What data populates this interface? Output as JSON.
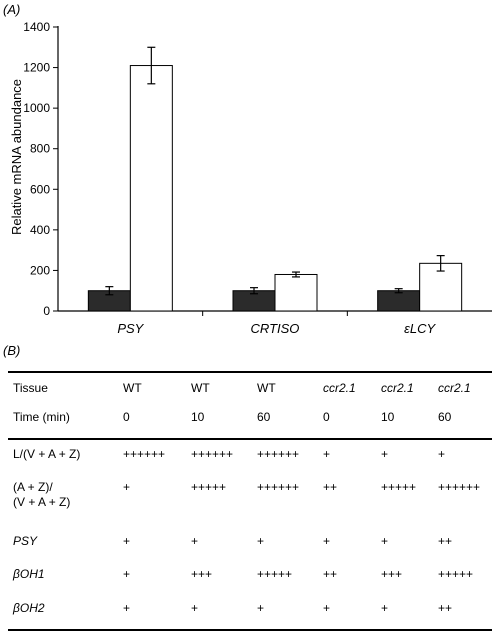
{
  "panel_a_label": "(A)",
  "panel_b_label": "(B)",
  "chart_data": {
    "type": "bar",
    "title": "",
    "xlabel": "",
    "ylabel": "Relative mRNA abundance",
    "ylim": [
      0,
      1400
    ],
    "yticks": [
      0,
      200,
      400,
      600,
      800,
      1000,
      1200,
      1400
    ],
    "categories": [
      "PSY",
      "CRTISO",
      "εLCY"
    ],
    "series": [
      {
        "color": "#2b2b2b",
        "values": [
          100,
          100,
          100
        ],
        "errors": [
          20,
          15,
          10
        ]
      },
      {
        "color": "#ffffff",
        "values": [
          1210,
          180,
          235
        ],
        "errors": [
          90,
          12,
          38
        ]
      }
    ],
    "grid": false,
    "legend": "none"
  },
  "table": {
    "header": {
      "tissue": {
        "label": "Tissue",
        "values": [
          "WT",
          "WT",
          "WT",
          "ccr2.1",
          "ccr2.1",
          "ccr2.1"
        ]
      },
      "time": {
        "label": "Time (min)",
        "values": [
          "0",
          "10",
          "60",
          "0",
          "10",
          "60"
        ]
      }
    },
    "rows": [
      {
        "label": "L/(V + A + Z)",
        "italic": false,
        "values": [
          "++++++",
          "++++++",
          "++++++",
          "+",
          "+",
          "+"
        ]
      },
      {
        "label": "(A + Z)/",
        "label2": "(V + A + Z)",
        "italic": false,
        "values": [
          "+",
          "+++++",
          "++++++",
          "++",
          "+++++",
          "++++++"
        ]
      },
      {
        "label": "PSY",
        "italic": true,
        "values": [
          "+",
          "+",
          "+",
          "+",
          "+",
          "++"
        ]
      },
      {
        "label": "βOH1",
        "italic": true,
        "values": [
          "+",
          "+++",
          "+++++",
          "++",
          "+++",
          "+++++"
        ]
      },
      {
        "label": "βOH2",
        "italic": true,
        "values": [
          "+",
          "+",
          "+",
          "+",
          "+",
          "++"
        ]
      }
    ]
  }
}
